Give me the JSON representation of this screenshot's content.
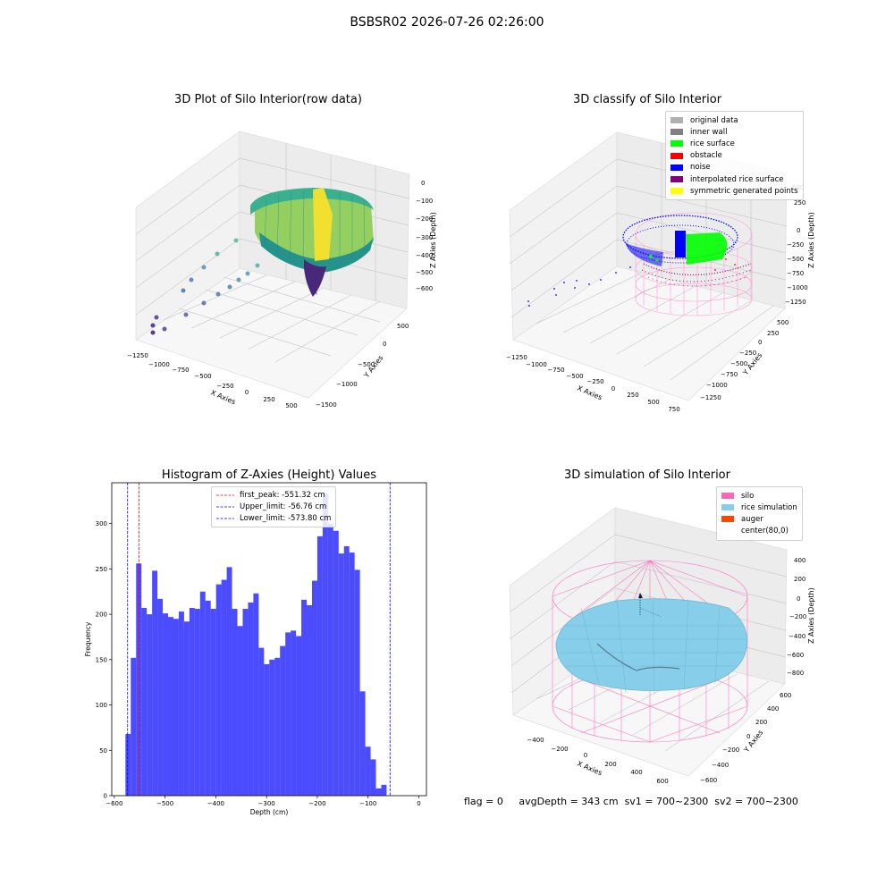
{
  "figure": {
    "title": "BSBSR02 2026-07-26 02:26:00"
  },
  "panels": {
    "raw": {
      "title": "3D Plot of Silo Interior(row data)",
      "xlabel": "X Axies",
      "ylabel": "Y Axies",
      "zlabel": "Z Axies (Depth)",
      "xticks": [
        "−1250",
        "−1000",
        "−750",
        "−500",
        "−250",
        "0",
        "250",
        "500"
      ],
      "yticks": [
        "500",
        "0",
        "−500",
        "−1000",
        "−1500"
      ],
      "zticks": [
        "0",
        "−100",
        "−200",
        "−300",
        "−400",
        "−500",
        "−600"
      ]
    },
    "classify": {
      "title": "3D classify of Silo Interior",
      "xlabel": "X Axies",
      "ylabel": "Y Axies",
      "zlabel": "Z Axies (Depth)",
      "xticks": [
        "−1250",
        "−1000",
        "−750",
        "−500",
        "−250",
        "0",
        "250",
        "500",
        "750"
      ],
      "yticks": [
        "500",
        "250",
        "0",
        "−250",
        "−500",
        "−750",
        "−1000",
        "−1250"
      ],
      "zticks": [
        "500",
        "250",
        "0",
        "−250",
        "−500",
        "−750",
        "−1000",
        "−1250"
      ],
      "legend": [
        {
          "label": "original data",
          "color": "#b0b0b0"
        },
        {
          "label": "inner wall",
          "color": "#808080"
        },
        {
          "label": "rice surface",
          "color": "#00ff00"
        },
        {
          "label": "obstacle",
          "color": "#ff0000"
        },
        {
          "label": "noise",
          "color": "#0000ff"
        },
        {
          "label": "interpolated rice surface",
          "color": "#800080"
        },
        {
          "label": "symmetric generated points",
          "color": "#ffff00"
        }
      ]
    },
    "simulation": {
      "title": "3D simulation of Silo Interior",
      "xlabel": "X Axies",
      "ylabel": "Y Axies",
      "zlabel": "Z Axies (Depth)",
      "xticks": [
        "−400",
        "−200",
        "0",
        "200",
        "400",
        "600"
      ],
      "yticks": [
        "600",
        "400",
        "200",
        "0",
        "−200",
        "−400",
        "−600"
      ],
      "zticks": [
        "400",
        "200",
        "0",
        "−200",
        "−400",
        "−600",
        "−800"
      ],
      "legend": [
        {
          "label": "silo",
          "color": "#ff69b4"
        },
        {
          "label": "rice simulation",
          "color": "#87ceeb"
        },
        {
          "label": "auger",
          "color": "#ff4500"
        },
        {
          "label": "center(80,0)",
          "color": "#ffffff"
        }
      ]
    }
  },
  "chart_data": {
    "type": "bar",
    "title": "Histogram of Z-Axies (Height) Values",
    "xlabel": "Depth (cm)",
    "ylabel": "Frequency",
    "xlim": [
      -605,
      15
    ],
    "ylim": [
      0,
      345
    ],
    "xticks": [
      -600,
      -500,
      -400,
      -300,
      -200,
      -100,
      0
    ],
    "yticks": [
      0,
      50,
      100,
      150,
      200,
      250,
      300
    ],
    "color": "#0000ff",
    "bin_width": 10.5,
    "bin_start": -578,
    "values": [
      68,
      152,
      256,
      207,
      200,
      248,
      217,
      201,
      197,
      195,
      203,
      192,
      207,
      206,
      225,
      215,
      206,
      233,
      238,
      252,
      206,
      187,
      206,
      213,
      223,
      163,
      145,
      150,
      152,
      165,
      180,
      182,
      176,
      216,
      210,
      237,
      286,
      333,
      300,
      292,
      267,
      275,
      268,
      249,
      115,
      54,
      40,
      8,
      12
    ],
    "vlines": [
      {
        "label": "first_peak: -551.32 cm",
        "x": -551.32,
        "color": "#ff0000"
      },
      {
        "label": "Upper_limit: -56.76 cm",
        "x": -56.76,
        "color": "#0000ff"
      },
      {
        "label": "Lower_limit: -573.80 cm",
        "x": -573.8,
        "color": "#0000ff"
      }
    ]
  },
  "footer": {
    "flag": "flag = 0",
    "avg_depth": "avgDepth = 343 cm",
    "sv1": "sv1 = 700~2300",
    "sv2": "sv2 = 700~2300"
  }
}
